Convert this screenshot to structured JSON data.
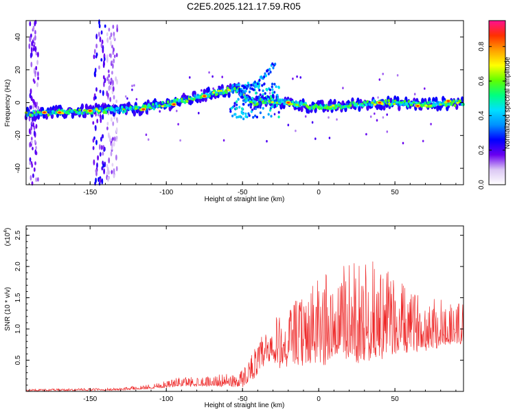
{
  "title": "C2E5.2025.121.17.59.R05",
  "chart_data": [
    {
      "type": "heatmap",
      "name": "spectrogram",
      "xlabel": "Height of straight line (km)",
      "ylabel": "Frequency (Hz)",
      "xlim": [
        -192,
        95
      ],
      "ylim": [
        -50,
        50
      ],
      "x_ticks": [
        -150,
        -100,
        -50,
        0,
        50
      ],
      "x_tick_labels": [
        "-150",
        "-100",
        "-50",
        "0",
        "50"
      ],
      "y_ticks": [
        -40,
        -20,
        0,
        20,
        40
      ],
      "y_tick_labels": [
        "-40",
        "-20",
        "0",
        "20",
        "40"
      ],
      "ridge": [
        {
          "x": -192,
          "f": -7
        },
        {
          "x": -150,
          "f": -5
        },
        {
          "x": -120,
          "f": -4
        },
        {
          "x": -100,
          "f": -1
        },
        {
          "x": -80,
          "f": 3
        },
        {
          "x": -65,
          "f": 7
        },
        {
          "x": -52,
          "f": 8
        },
        {
          "x": -45,
          "f": 0
        },
        {
          "x": -30,
          "f": 1
        },
        {
          "x": 0,
          "f": -3
        },
        {
          "x": 40,
          "f": 0
        },
        {
          "x": 70,
          "f": -1
        },
        {
          "x": 95,
          "f": 0
        }
      ],
      "branch": [
        {
          "x": -52,
          "f": 6
        },
        {
          "x": -40,
          "f": 12
        },
        {
          "x": -28,
          "f": 24
        }
      ],
      "hotspots": [
        {
          "x": -180,
          "f": -6
        },
        {
          "x": -170,
          "f": -6
        },
        {
          "x": -150,
          "f": -5
        },
        {
          "x": -115,
          "f": -4
        },
        {
          "x": -95,
          "f": -1
        },
        {
          "x": -75,
          "f": 4
        },
        {
          "x": -20,
          "f": 0
        },
        {
          "x": 40,
          "f": 0
        },
        {
          "x": 65,
          "f": -2
        },
        {
          "x": 85,
          "f": 1
        }
      ]
    },
    {
      "type": "line",
      "name": "snr",
      "xlabel": "Height of straight line (km)",
      "ylabel": "SNR (10 * v/v)",
      "y_multiplier": "(x10",
      "y_exponent": "4",
      "y_multiplier_close": ")",
      "xlim": [
        -192,
        95
      ],
      "ylim": [
        0,
        2.65
      ],
      "x_ticks": [
        -150,
        -100,
        -50,
        0,
        50
      ],
      "x_tick_labels": [
        "-150",
        "-100",
        "-50",
        "0",
        "50"
      ],
      "y_ticks": [
        0.5,
        1.0,
        1.5,
        2.0,
        2.5
      ],
      "y_tick_labels": [
        "0.5",
        "1.0",
        "1.5",
        "2.0",
        "2.5"
      ],
      "color": "#ee2a2a",
      "envelope": [
        {
          "x": -192,
          "base": 0.01,
          "amp": 0.03
        },
        {
          "x": -130,
          "base": 0.02,
          "amp": 0.04
        },
        {
          "x": -110,
          "base": 0.05,
          "amp": 0.08
        },
        {
          "x": -90,
          "base": 0.1,
          "amp": 0.15
        },
        {
          "x": -60,
          "base": 0.1,
          "amp": 0.18
        },
        {
          "x": -50,
          "base": 0.1,
          "amp": 0.3
        },
        {
          "x": -35,
          "base": 0.45,
          "amp": 0.6
        },
        {
          "x": -20,
          "base": 0.5,
          "amp": 0.9
        },
        {
          "x": 0,
          "base": 0.6,
          "amp": 1.3
        },
        {
          "x": 20,
          "base": 0.65,
          "amp": 1.5
        },
        {
          "x": 40,
          "base": 0.7,
          "amp": 1.5
        },
        {
          "x": 60,
          "base": 0.75,
          "amp": 0.9
        },
        {
          "x": 80,
          "base": 0.8,
          "amp": 0.8
        },
        {
          "x": 95,
          "base": 0.8,
          "amp": 0.7
        }
      ]
    }
  ],
  "colorbar": {
    "label": "Normalized spectral amplitude",
    "range": [
      0,
      0.95
    ],
    "ticks": [
      0.0,
      0.2,
      0.4,
      0.6,
      0.8
    ],
    "tick_labels": [
      "0.0",
      "0.2",
      "0.4",
      "0.6",
      "0.8"
    ],
    "colors": [
      "#ffffff",
      "#dcc8f4",
      "#6a00f0",
      "#0000ff",
      "#0090ff",
      "#00e0ff",
      "#00ff80",
      "#60ff00",
      "#ffff00",
      "#ffa000",
      "#ff3000",
      "#ff1090"
    ]
  }
}
